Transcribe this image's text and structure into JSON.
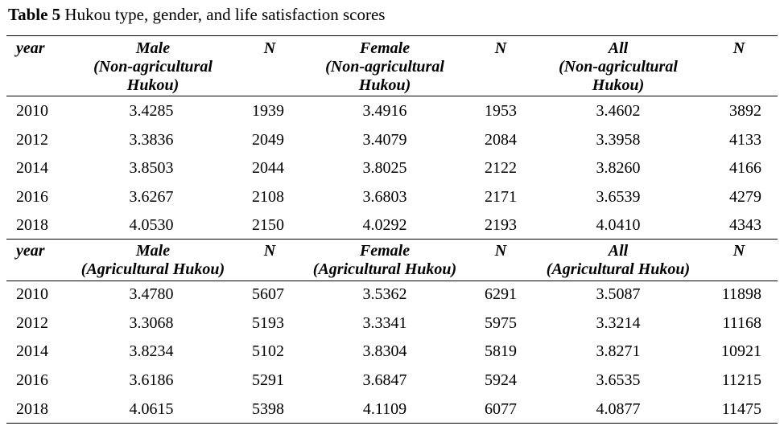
{
  "caption": {
    "label": "Table 5",
    "text": "Hukou type, gender, and life satisfaction scores"
  },
  "sections": [
    {
      "header": [
        [
          "year"
        ],
        [
          "Male",
          "(Non-agricultural",
          "Hukou)"
        ],
        [
          "N"
        ],
        [
          "Female",
          "(Non-agricultural",
          "Hukou)"
        ],
        [
          "N"
        ],
        [
          "All",
          "(Non-agricultural",
          "Hukou)"
        ],
        [
          "N"
        ]
      ],
      "rows": [
        [
          "2010",
          "3.4285",
          "1939",
          "3.4916",
          "1953",
          "3.4602",
          "3892"
        ],
        [
          "2012",
          "3.3836",
          "2049",
          "3.4079",
          "2084",
          "3.3958",
          "4133"
        ],
        [
          "2014",
          "3.8503",
          "2044",
          "3.8025",
          "2122",
          "3.8260",
          "4166"
        ],
        [
          "2016",
          "3.6267",
          "2108",
          "3.6803",
          "2171",
          "3.6539",
          "4279"
        ],
        [
          "2018",
          "4.0530",
          "2150",
          "4.0292",
          "2193",
          "4.0410",
          "4343"
        ]
      ]
    },
    {
      "header": [
        [
          "year"
        ],
        [
          "Male",
          "(Agricultural Hukou)"
        ],
        [
          "N"
        ],
        [
          "Female",
          "(Agricultural Hukou)"
        ],
        [
          "N"
        ],
        [
          "All",
          "(Agricultural Hukou)"
        ],
        [
          "N"
        ]
      ],
      "rows": [
        [
          "2010",
          "3.4780",
          "5607",
          "3.5362",
          "6291",
          "3.5087",
          "11898"
        ],
        [
          "2012",
          "3.3068",
          "5193",
          "3.3341",
          "5975",
          "3.3214",
          "11168"
        ],
        [
          "2014",
          "3.8234",
          "5102",
          "3.8304",
          "5819",
          "3.8271",
          "10921"
        ],
        [
          "2016",
          "3.6186",
          "5291",
          "3.6847",
          "5924",
          "3.6535",
          "11215"
        ],
        [
          "2018",
          "4.0615",
          "5398",
          "4.1109",
          "6077",
          "4.0877",
          "11475"
        ]
      ]
    }
  ]
}
